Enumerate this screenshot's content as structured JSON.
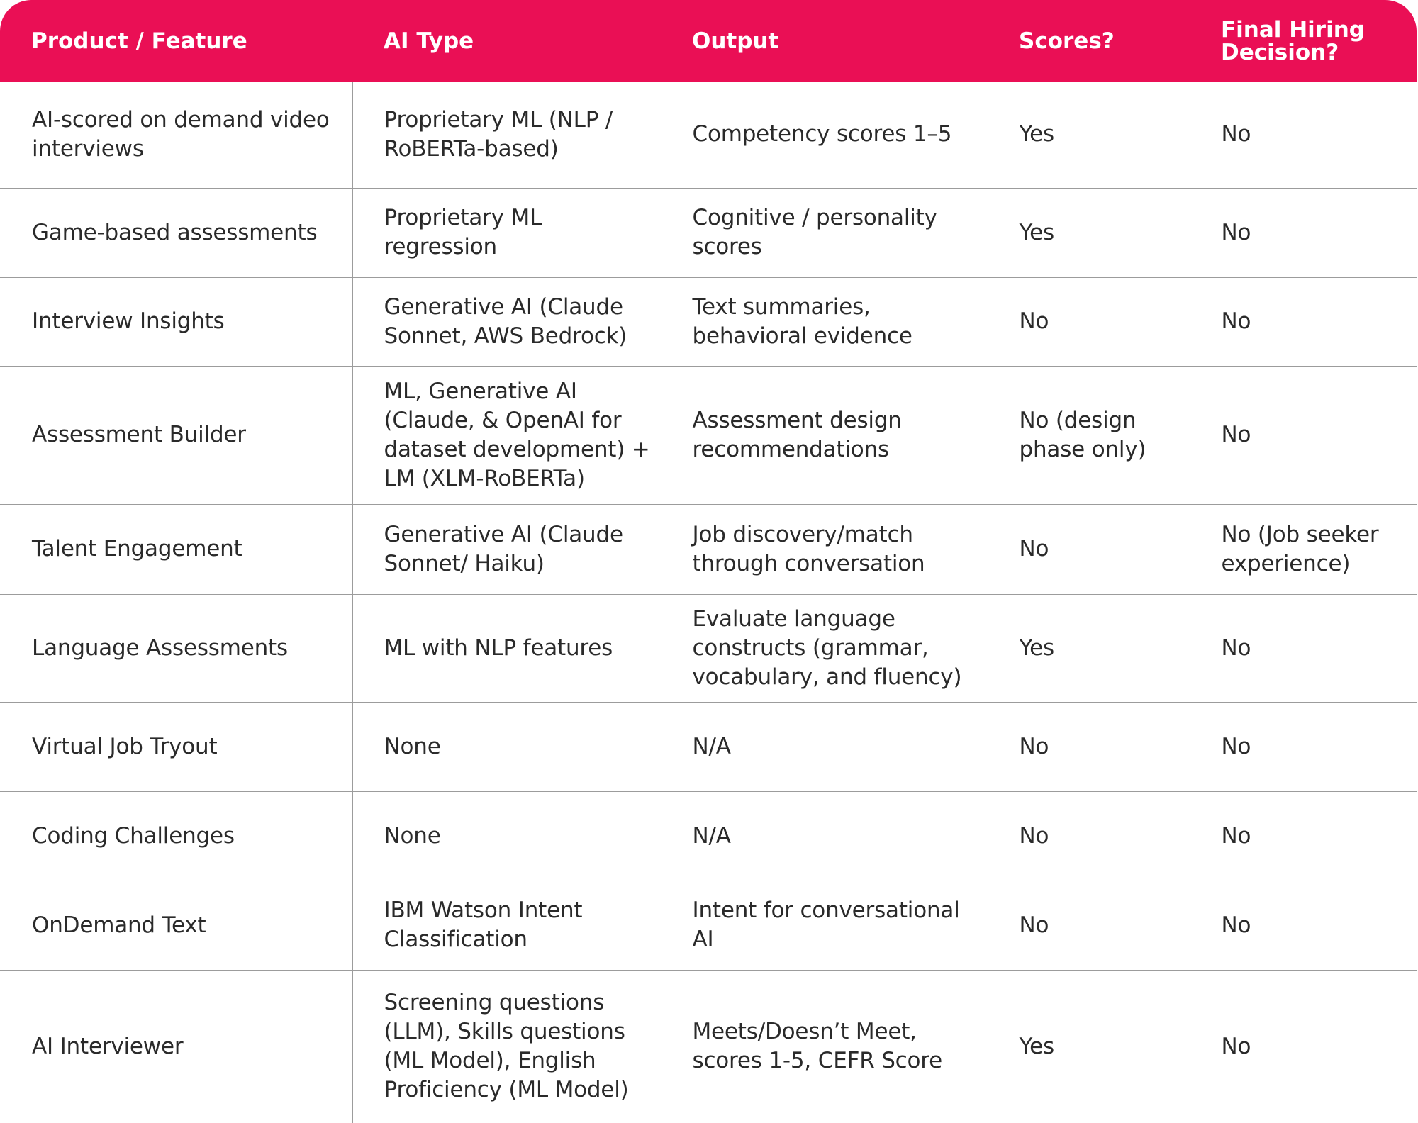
{
  "table": {
    "headers": [
      "Product / Feature",
      "AI Type",
      "Output",
      "Scores?",
      "Final Hiring Decision?"
    ],
    "rows": [
      [
        "AI-scored on demand video interviews",
        "Proprietary ML (NLP / RoBERTa-based)",
        "Competency scores 1–5",
        "Yes",
        "No"
      ],
      [
        "Game-based assessments",
        "Proprietary ML regression",
        "Cognitive / personality scores",
        "Yes",
        "No"
      ],
      [
        "Interview Insights",
        "Generative AI (Claude Sonnet, AWS Bedrock)",
        "Text summaries, behavioral evidence",
        "No",
        "No"
      ],
      [
        "Assessment Builder",
        "ML, Generative AI (Claude, & OpenAI for dataset development) + LM (XLM-RoBERTa)",
        "Assessment design recommendations",
        "No (design phase only)",
        "No"
      ],
      [
        "Talent Engagement",
        "Generative AI (Claude Sonnet/ Haiku)",
        "Job discovery/match through conversation",
        "No",
        "No (Job seeker experience)"
      ],
      [
        "Language Assessments",
        "ML with NLP features",
        "Evaluate language constructs (grammar, vocabulary, and fluency)",
        "Yes",
        "No"
      ],
      [
        "Virtual Job Tryout",
        "None",
        "N/A",
        "No",
        "No"
      ],
      [
        "Coding Challenges",
        "None",
        "N/A",
        "No",
        "No"
      ],
      [
        "OnDemand Text",
        "IBM Watson Intent Classification",
        "Intent for conversational AI",
        "No",
        "No"
      ],
      [
        "AI Interviewer",
        "Screening questions (LLM), Skills questions (ML Model), English Proficiency (ML Model)",
        "Meets/Doesn’t Meet, scores 1-5, CEFR Score",
        "Yes",
        "No"
      ]
    ]
  },
  "colors": {
    "header_background": "#ea0f55",
    "header_text": "#ffffff",
    "grid_lines": "#9c9c9c",
    "body_text": "#2a2a2a"
  }
}
